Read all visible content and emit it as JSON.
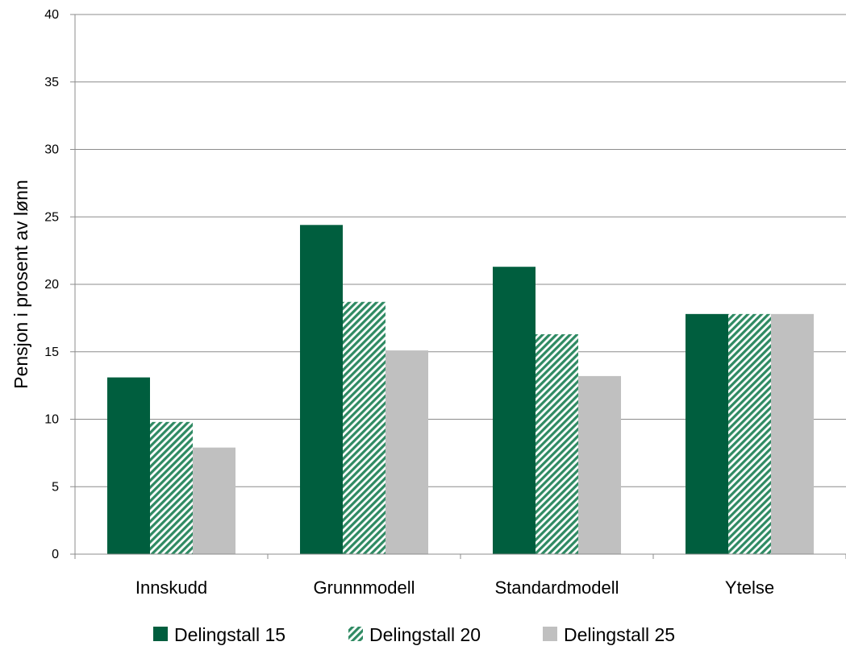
{
  "chart_data": {
    "type": "bar",
    "title": "",
    "xlabel": "",
    "ylabel": "Pensjon i prosent av lønn",
    "ylim": [
      0,
      40
    ],
    "yticks": [
      0,
      5,
      10,
      15,
      20,
      25,
      30,
      35,
      40
    ],
    "grid": true,
    "legend_position": "bottom",
    "categories": [
      "Innskudd",
      "Grunnmodell",
      "Standardmodell",
      "Ytelse"
    ],
    "series": [
      {
        "name": "Delingstall 15",
        "values": [
          13.1,
          24.4,
          21.3,
          17.8
        ],
        "color": "#005e3e",
        "pattern": "solid"
      },
      {
        "name": "Delingstall 20",
        "values": [
          9.8,
          18.7,
          16.3,
          17.8
        ],
        "color": "#005e3e",
        "pattern": "hatch"
      },
      {
        "name": "Delingstall 25",
        "values": [
          7.9,
          15.1,
          13.2,
          17.8
        ],
        "color": "#c0c0c0",
        "pattern": "solid"
      }
    ]
  }
}
